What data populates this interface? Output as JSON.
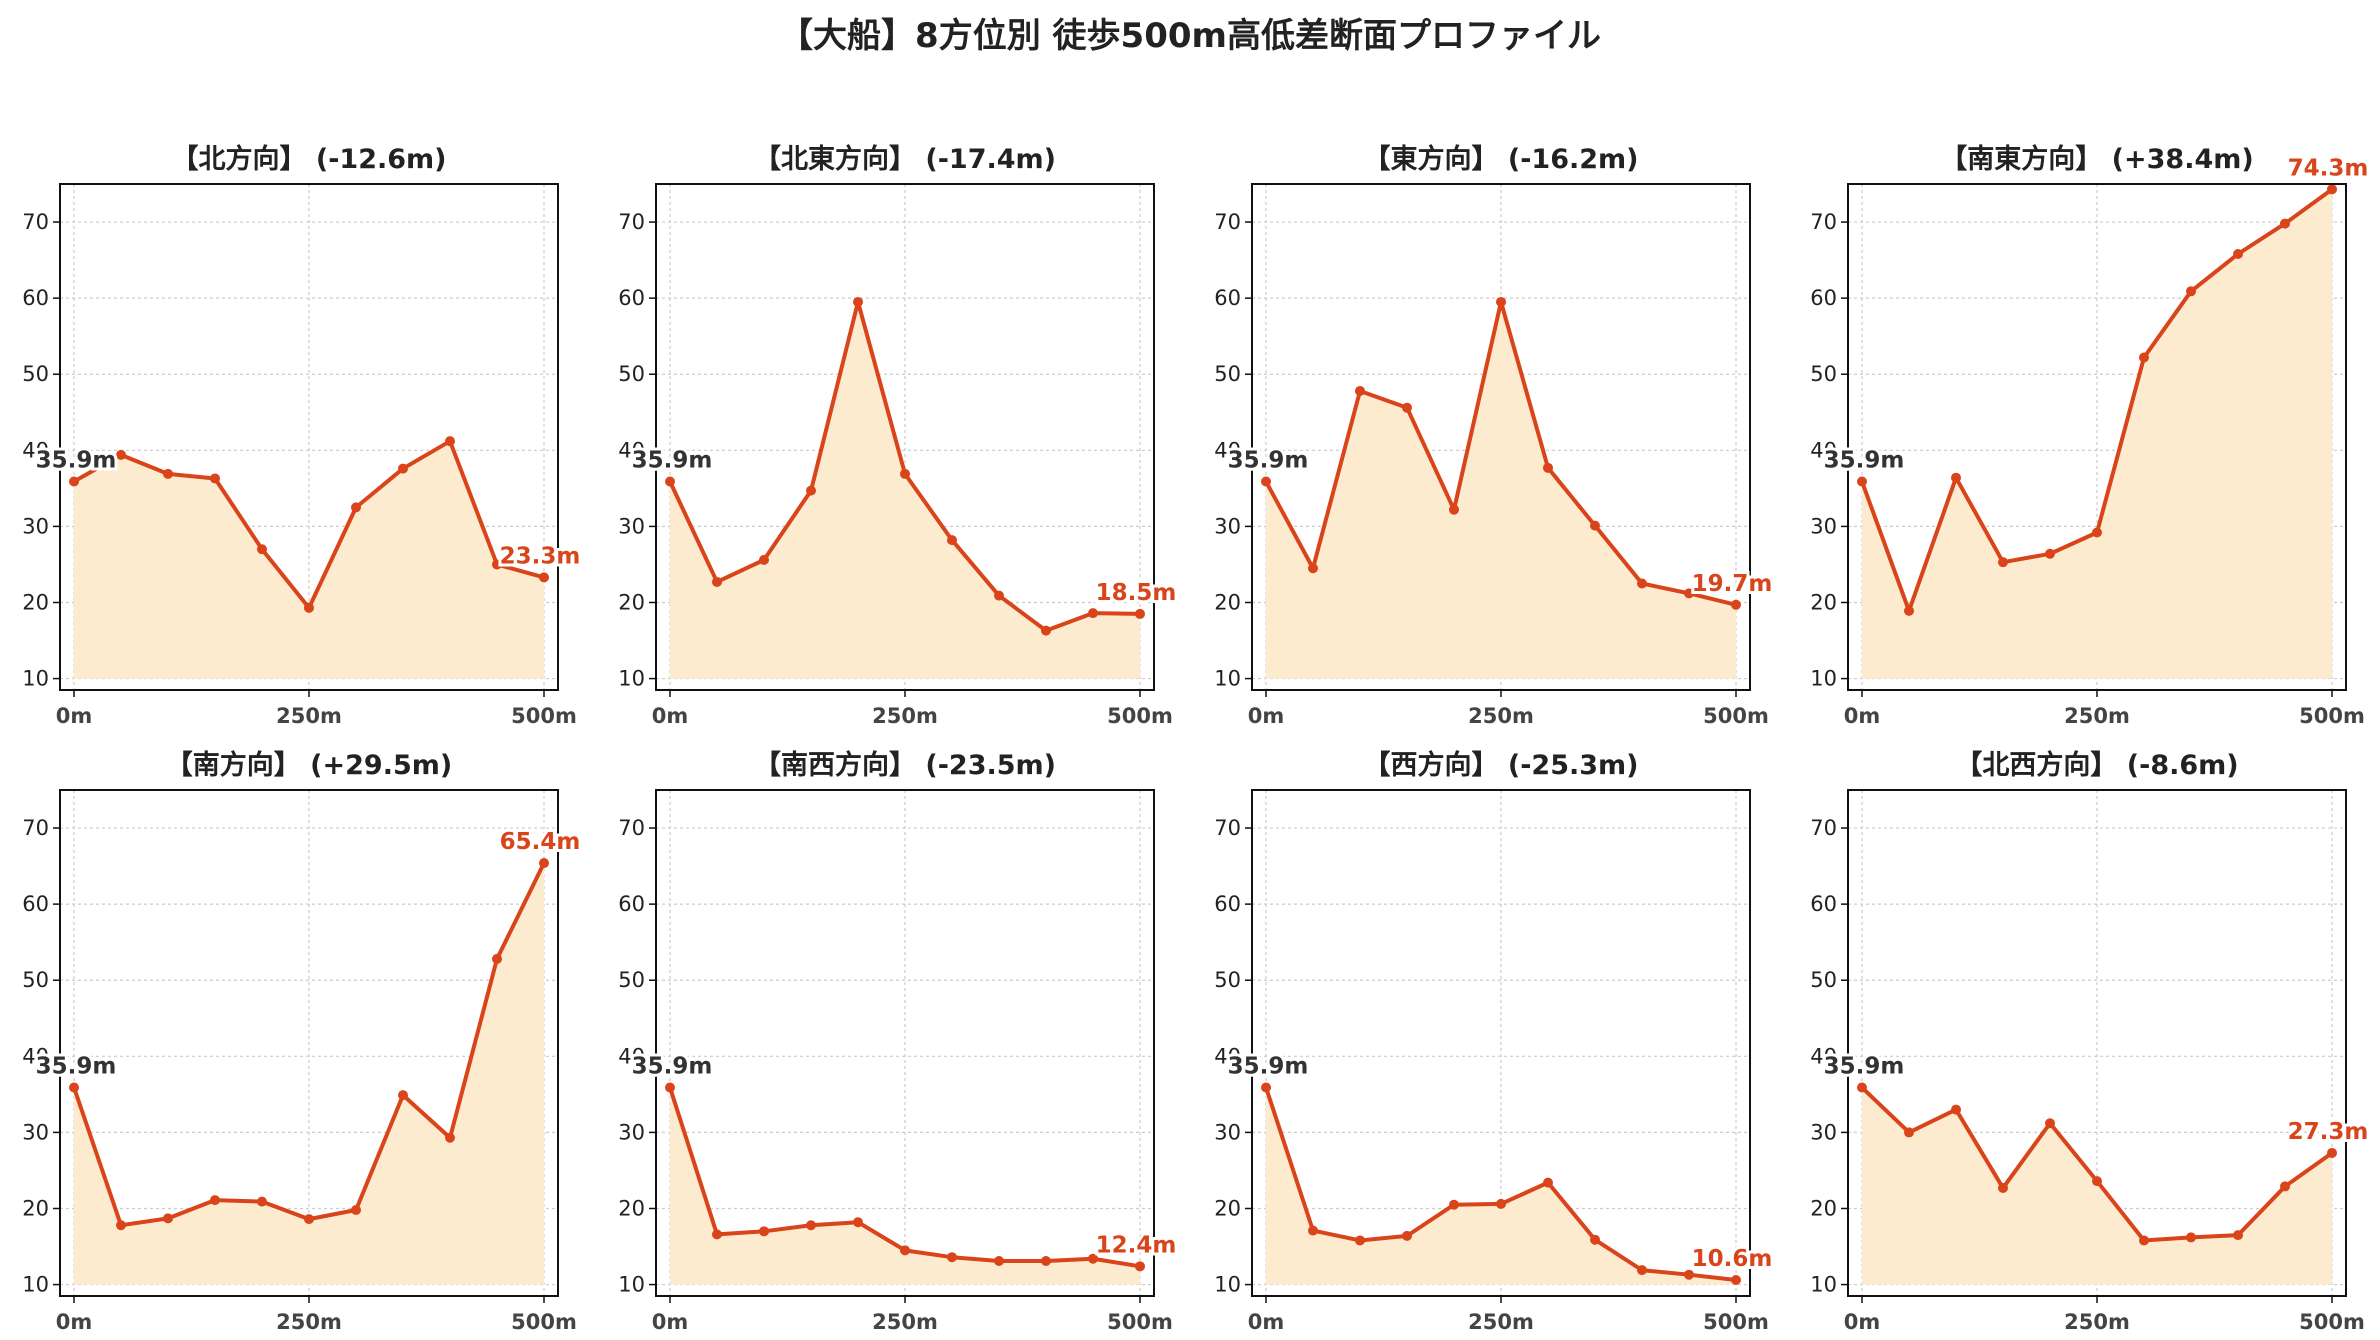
{
  "title": "【大船】8方位別 徒歩500m高低差断面プロファイル",
  "colors": {
    "line": "#d9441a",
    "fill": "#fdebd0",
    "start_label": "#333333",
    "end_label": "#d9441a",
    "grid": "#cccccc"
  },
  "chart_data": [
    {
      "type": "area",
      "title": "【北方向】 (-12.6m)",
      "x": [
        0,
        50,
        100,
        150,
        200,
        250,
        300,
        350,
        400,
        450,
        500
      ],
      "values": [
        35.9,
        39.4,
        36.9,
        36.3,
        27.0,
        19.3,
        32.5,
        37.6,
        41.2,
        25.0,
        23.3
      ],
      "start_label": "35.9m",
      "end_label": "23.3m",
      "ylim": [
        10,
        75
      ],
      "yticks": [
        10,
        20,
        30,
        40,
        50,
        60,
        70
      ],
      "xtick_labels": [
        "0m",
        "250m",
        "500m"
      ],
      "grid": true
    },
    {
      "type": "area",
      "title": "【北東方向】 (-17.4m)",
      "x": [
        0,
        50,
        100,
        150,
        200,
        250,
        300,
        350,
        400,
        450,
        500
      ],
      "values": [
        35.9,
        22.7,
        25.6,
        34.7,
        59.5,
        36.9,
        28.2,
        20.9,
        16.3,
        18.6,
        18.5
      ],
      "start_label": "35.9m",
      "end_label": "18.5m",
      "ylim": [
        10,
        75
      ],
      "yticks": [
        10,
        20,
        30,
        40,
        50,
        60,
        70
      ],
      "xtick_labels": [
        "0m",
        "250m",
        "500m"
      ],
      "grid": true
    },
    {
      "type": "area",
      "title": "【東方向】 (-16.2m)",
      "x": [
        0,
        50,
        100,
        150,
        200,
        250,
        300,
        350,
        400,
        450,
        500
      ],
      "values": [
        35.9,
        24.5,
        47.8,
        45.6,
        32.2,
        59.5,
        37.7,
        30.1,
        22.5,
        21.2,
        19.7
      ],
      "start_label": "35.9m",
      "end_label": "19.7m",
      "ylim": [
        10,
        75
      ],
      "yticks": [
        10,
        20,
        30,
        40,
        50,
        60,
        70
      ],
      "xtick_labels": [
        "0m",
        "250m",
        "500m"
      ],
      "grid": true
    },
    {
      "type": "area",
      "title": "【南東方向】 (+38.4m)",
      "x": [
        0,
        50,
        100,
        150,
        200,
        250,
        300,
        350,
        400,
        450,
        500
      ],
      "values": [
        35.9,
        18.9,
        36.4,
        25.3,
        26.4,
        29.2,
        52.2,
        60.9,
        65.8,
        69.8,
        74.3
      ],
      "start_label": "35.9m",
      "end_label": "74.3m",
      "ylim": [
        10,
        75
      ],
      "yticks": [
        10,
        20,
        30,
        40,
        50,
        60,
        70
      ],
      "xtick_labels": [
        "0m",
        "250m",
        "500m"
      ],
      "grid": true
    },
    {
      "type": "area",
      "title": "【南方向】 (+29.5m)",
      "x": [
        0,
        50,
        100,
        150,
        200,
        250,
        300,
        350,
        400,
        450,
        500
      ],
      "values": [
        35.9,
        17.8,
        18.7,
        21.1,
        20.9,
        18.6,
        19.8,
        34.9,
        29.3,
        52.8,
        65.4
      ],
      "start_label": "35.9m",
      "end_label": "65.4m",
      "ylim": [
        10,
        75
      ],
      "yticks": [
        10,
        20,
        30,
        40,
        50,
        60,
        70
      ],
      "xtick_labels": [
        "0m",
        "250m",
        "500m"
      ],
      "grid": true
    },
    {
      "type": "area",
      "title": "【南西方向】 (-23.5m)",
      "x": [
        0,
        50,
        100,
        150,
        200,
        250,
        300,
        350,
        400,
        450,
        500
      ],
      "values": [
        35.9,
        16.6,
        17.0,
        17.8,
        18.2,
        14.5,
        13.6,
        13.1,
        13.1,
        13.4,
        12.4
      ],
      "start_label": "35.9m",
      "end_label": "12.4m",
      "ylim": [
        10,
        75
      ],
      "yticks": [
        10,
        20,
        30,
        40,
        50,
        60,
        70
      ],
      "xtick_labels": [
        "0m",
        "250m",
        "500m"
      ],
      "grid": true
    },
    {
      "type": "area",
      "title": "【西方向】 (-25.3m)",
      "x": [
        0,
        50,
        100,
        150,
        200,
        250,
        300,
        350,
        400,
        450,
        500
      ],
      "values": [
        35.9,
        17.1,
        15.8,
        16.4,
        20.5,
        20.6,
        23.4,
        15.9,
        11.9,
        11.3,
        10.6
      ],
      "start_label": "35.9m",
      "end_label": "10.6m",
      "ylim": [
        10,
        75
      ],
      "yticks": [
        10,
        20,
        30,
        40,
        50,
        60,
        70
      ],
      "xtick_labels": [
        "0m",
        "250m",
        "500m"
      ],
      "grid": true
    },
    {
      "type": "area",
      "title": "【北西方向】 (-8.6m)",
      "x": [
        0,
        50,
        100,
        150,
        200,
        250,
        300,
        350,
        400,
        450,
        500
      ],
      "values": [
        35.9,
        30.0,
        33.0,
        22.7,
        31.2,
        23.6,
        15.8,
        16.2,
        16.5,
        22.9,
        27.3
      ],
      "start_label": "35.9m",
      "end_label": "27.3m",
      "ylim": [
        10,
        75
      ],
      "yticks": [
        10,
        20,
        30,
        40,
        50,
        60,
        70
      ],
      "xtick_labels": [
        "0m",
        "250m",
        "500m"
      ],
      "grid": true
    }
  ]
}
